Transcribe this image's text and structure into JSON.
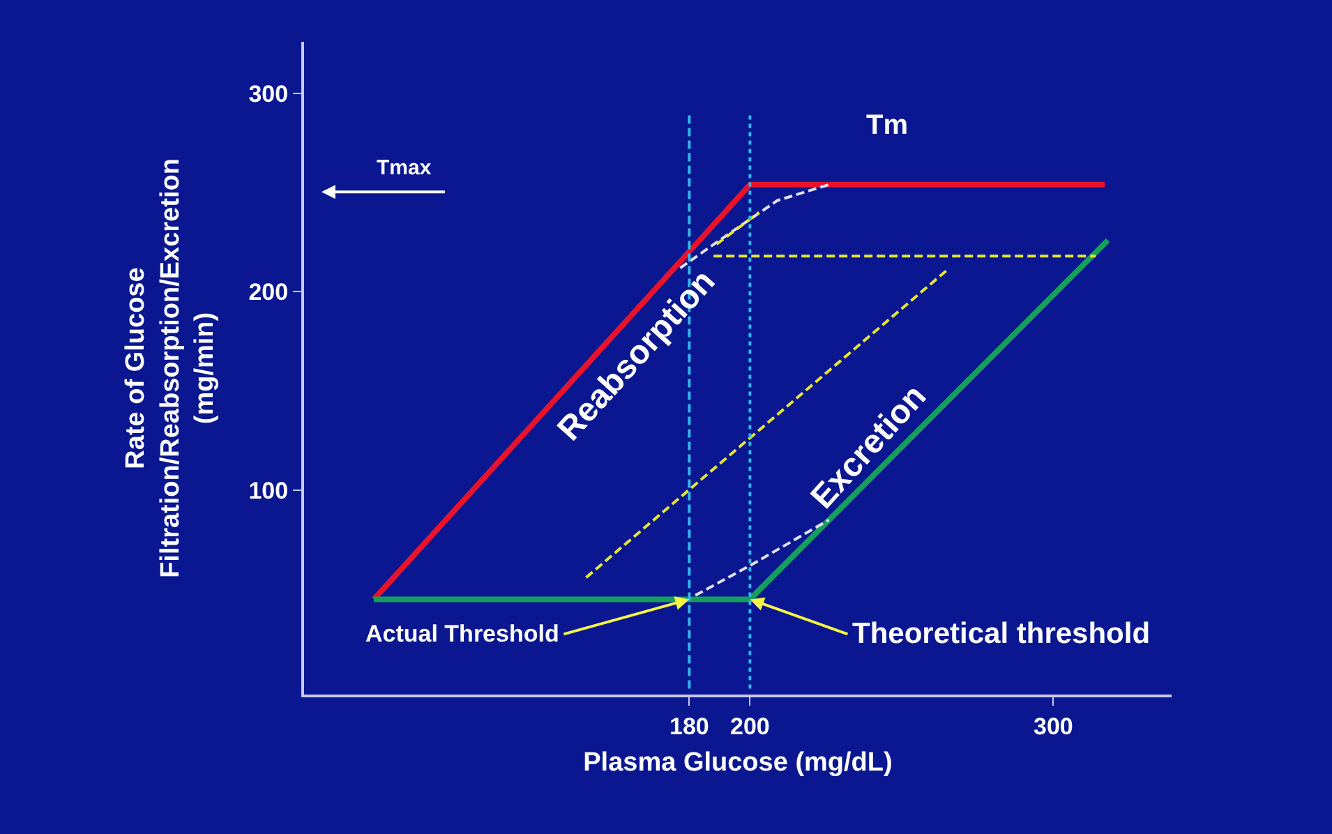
{
  "chart_data": {
    "type": "line",
    "xlabel": "Plasma Glucose (mg/dL)",
    "ylabel": "Rate of Glucose\nFiltration/Reabsorption/Excretion\n(mg/min)",
    "xlim": [
      53,
      339
    ],
    "xticks": [
      180,
      200,
      300
    ],
    "ylim": [
      -3,
      326
    ],
    "yticks": [
      100,
      200,
      300
    ],
    "grid": false,
    "legend": false,
    "marker": "none",
    "series": [
      {
        "name": "Reabsorption",
        "color": "#e8132a",
        "x": [
          76,
          200,
          317
        ],
        "values": [
          45,
          254,
          254
        ],
        "line_style": "solid"
      },
      {
        "name": "Excretion",
        "color": "#14a05a",
        "x": [
          76,
          200,
          318
        ],
        "values": [
          45,
          45,
          226
        ],
        "line_style": "solid"
      },
      {
        "color": "#e0e0f0",
        "x": [
          177,
          190,
          209,
          226
        ],
        "values": [
          212,
          226,
          246,
          254
        ],
        "line_style": "dashed"
      },
      {
        "color": "#e0e0f0",
        "x": [
          182,
          200,
          226
        ],
        "values": [
          47,
          62,
          85
        ],
        "line_style": "dashed"
      },
      {
        "color": "#e6e632",
        "x": [
          188,
          314
        ],
        "values": [
          218,
          218
        ],
        "line_style": "dashed"
      },
      {
        "color": "#e6e632",
        "x": [
          146,
          265
        ],
        "values": [
          56,
          211
        ],
        "line_style": "dashed"
      },
      {
        "color": "#e6e632",
        "x": [
          189,
          203
        ],
        "values": [
          224,
          240
        ],
        "line_style": "dashed"
      }
    ],
    "ref_lines": [
      {
        "axis": "x",
        "value": 180,
        "color": "#33b5e8",
        "line_style": "dashed"
      },
      {
        "axis": "x",
        "value": 200,
        "color": "#33b5e8",
        "line_style": "dotted"
      }
    ],
    "annotations": [
      "Tmax",
      "Tm",
      {
        "text": "Actual Threshold",
        "x": 180,
        "y": 45
      },
      {
        "text": "Theoretical threshold",
        "x": 200,
        "y": 45
      }
    ]
  }
}
